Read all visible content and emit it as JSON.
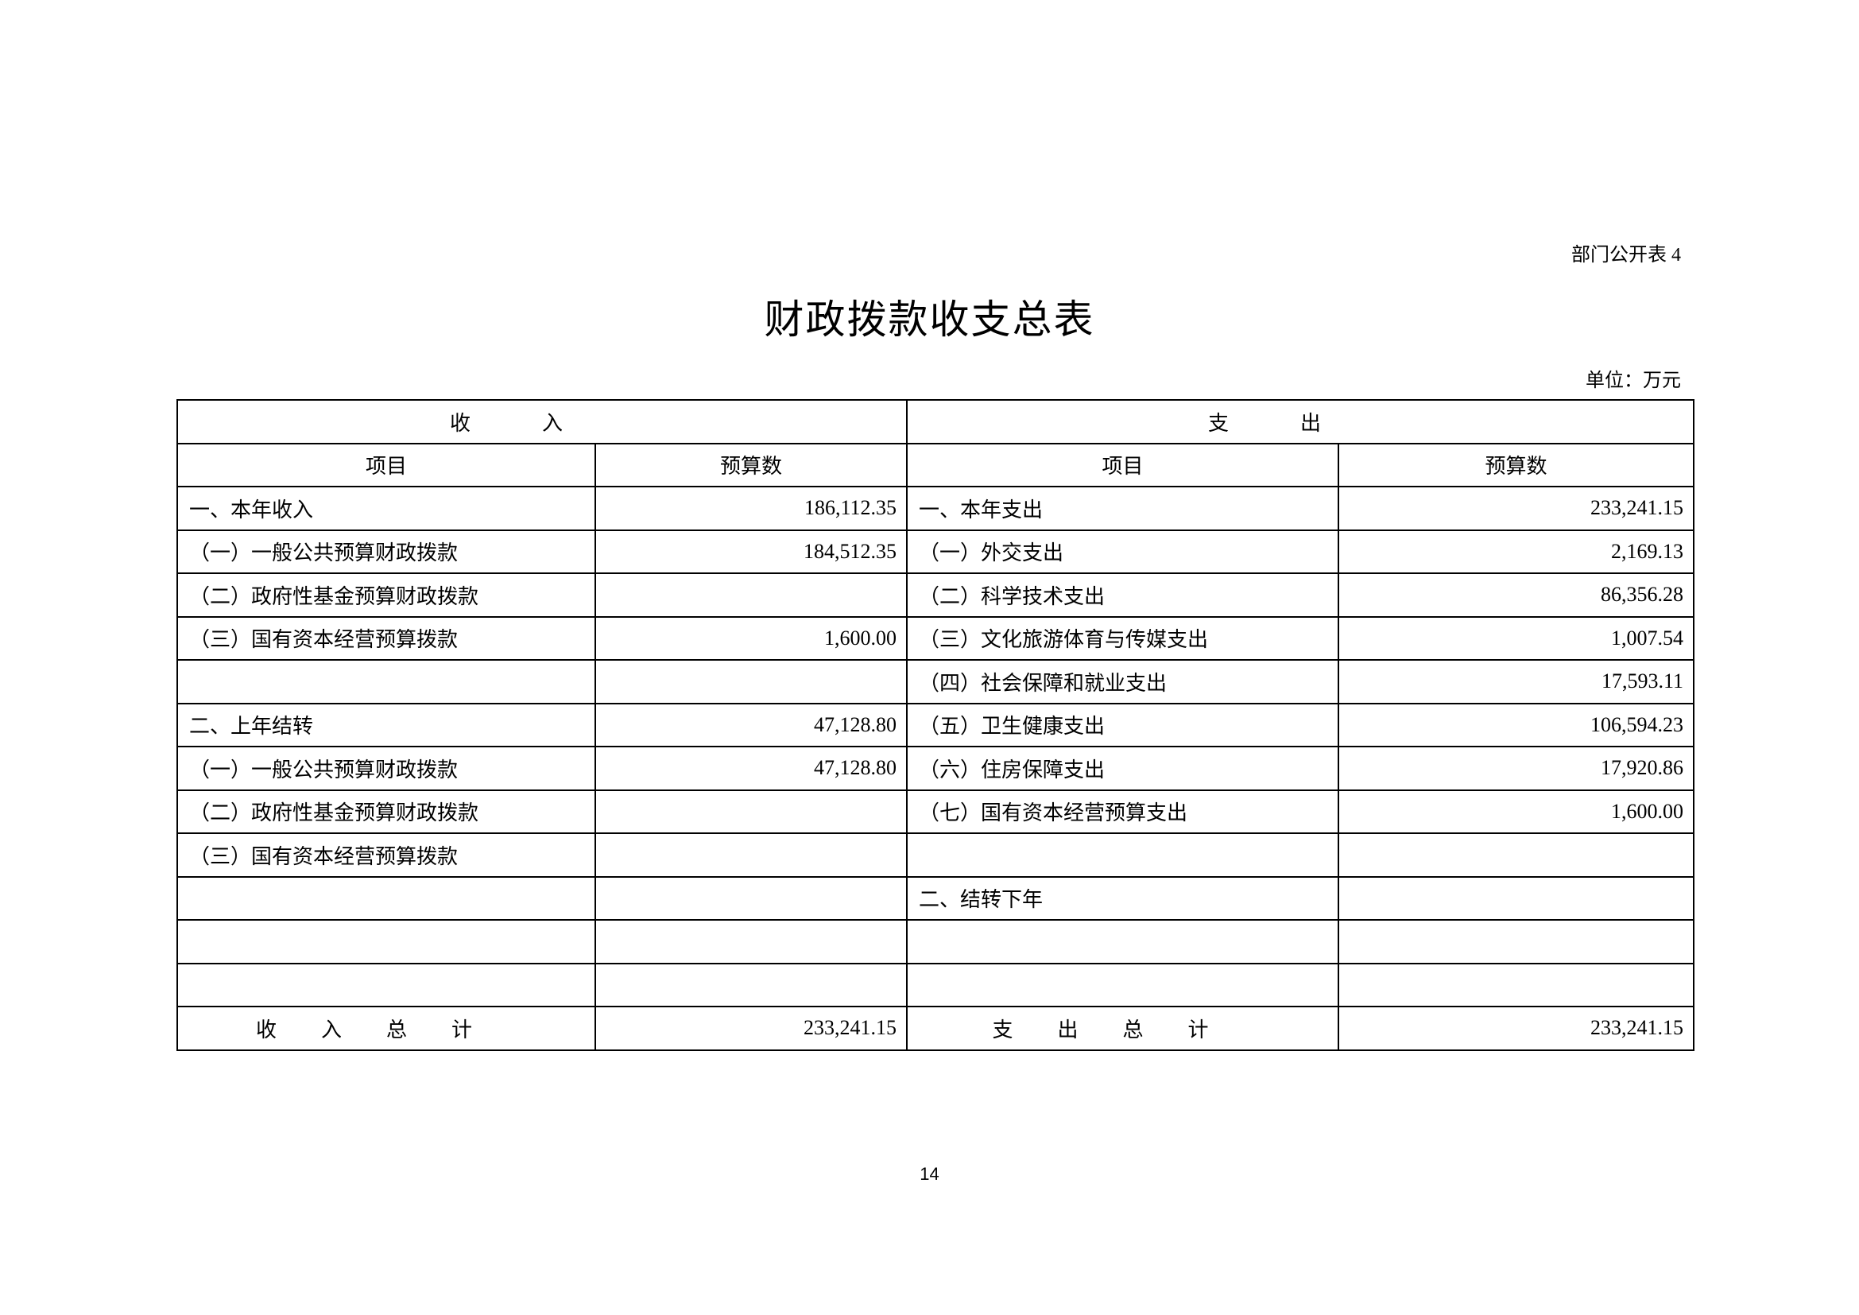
{
  "doc_tag": "部门公开表 4",
  "title": "财政拨款收支总表",
  "unit": "单位：万元",
  "header": {
    "income": "收入",
    "expense": "支出",
    "item": "项目",
    "amount": "预算数"
  },
  "rows": [
    [
      "一、本年收入",
      "186,112.35",
      "一、本年支出",
      "233,241.15"
    ],
    [
      "（一）一般公共预算财政拨款",
      "184,512.35",
      "（一）外交支出",
      "2,169.13"
    ],
    [
      "（二）政府性基金预算财政拨款",
      "",
      "（二）科学技术支出",
      "86,356.28"
    ],
    [
      "（三）国有资本经营预算拨款",
      "1,600.00",
      "（三）文化旅游体育与传媒支出",
      "1,007.54"
    ],
    [
      "",
      "",
      "（四）社会保障和就业支出",
      "17,593.11"
    ],
    [
      "二、上年结转",
      "47,128.80",
      "（五）卫生健康支出",
      "106,594.23"
    ],
    [
      "（一）一般公共预算财政拨款",
      "47,128.80",
      "（六）住房保障支出",
      "17,920.86"
    ],
    [
      "（二）政府性基金预算财政拨款",
      "",
      "（七）国有资本经营预算支出",
      "1,600.00"
    ],
    [
      "（三）国有资本经营预算拨款",
      "",
      "",
      ""
    ],
    [
      "",
      "",
      "二、结转下年",
      ""
    ],
    [
      "",
      "",
      "",
      ""
    ],
    [
      "",
      "",
      "",
      ""
    ]
  ],
  "totals": {
    "income_label": "收入总计",
    "income_value": "233,241.15",
    "expense_label": "支出总计",
    "expense_value": "233,241.15"
  },
  "page_number": "14"
}
